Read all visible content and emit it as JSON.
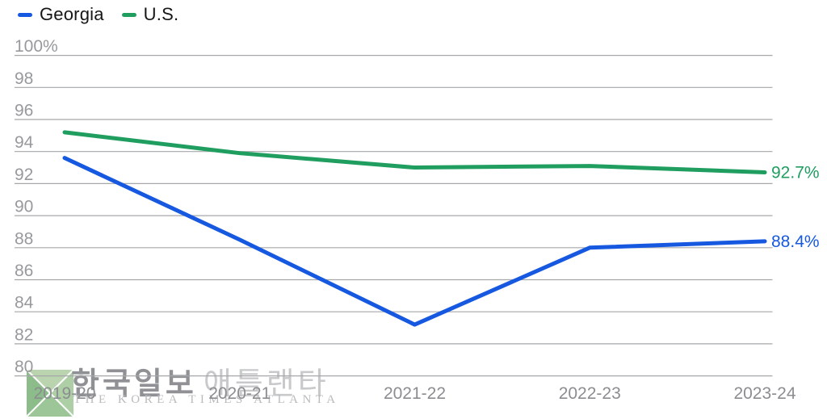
{
  "chart_data": {
    "type": "line",
    "categories": [
      "2019-20",
      "2020-21",
      "2021-22",
      "2022-23",
      "2023-24"
    ],
    "series": [
      {
        "name": "Georgia",
        "color": "#1659e0",
        "values": [
          93.6,
          88.5,
          83.2,
          88.0,
          88.4
        ],
        "end_label": "88.4%"
      },
      {
        "name": "U.S.",
        "color": "#1f9e60",
        "values": [
          95.2,
          93.9,
          93.0,
          93.1,
          92.7
        ],
        "end_label": "92.7%"
      }
    ],
    "ylim": [
      80,
      100
    ],
    "yticks": {
      "values": [
        100,
        98,
        96,
        94,
        92,
        90,
        88,
        86,
        84,
        82,
        80
      ],
      "labels": [
        "100%",
        "98",
        "96",
        "94",
        "92",
        "90",
        "88",
        "86",
        "84",
        "82",
        "80"
      ]
    },
    "grid": "horizontal",
    "legend_position": "top-left",
    "background": "#ffffff"
  },
  "watermark": {
    "korean_title": "한국일보",
    "korean_subtitle": "애틀랜타",
    "caption": "THE KOREA TIMES ATLANTA"
  },
  "colors": {
    "georgia_line": "#1659e0",
    "us_line": "#1f9e60",
    "grid_line": "#a6a7a9",
    "ytick_label": "#97999c",
    "xtick_label": "#8b8d90",
    "legend_text": "#161616",
    "korean_title_gray": "#8f9194",
    "korean_subtitle_gray": "#c8c9ca",
    "caption_gray": "#babbbc",
    "logo_green_dark": "#8cbc8a",
    "logo_green_mid": "#9cc698",
    "logo_green_light": "#b9d4af",
    "logo_green_light2": "#aecfa6"
  }
}
